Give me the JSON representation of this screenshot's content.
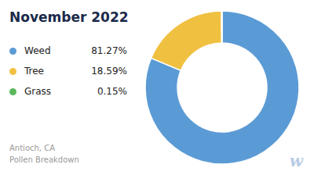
{
  "chart_data": {
    "type": "pie",
    "title": "November 2022",
    "subtitle": [
      "Antioch, CA",
      "Pollen Breakdown"
    ],
    "categories": [
      "Weed",
      "Tree",
      "Grass"
    ],
    "values": [
      81.27,
      18.59,
      0.15
    ],
    "value_labels": [
      "81.27%",
      "18.59%",
      "0.15%"
    ],
    "colors": [
      "#5B9BD5",
      "#F0C040",
      "#5CB85C"
    ],
    "annotations": [
      "w"
    ],
    "legend": "left"
  }
}
